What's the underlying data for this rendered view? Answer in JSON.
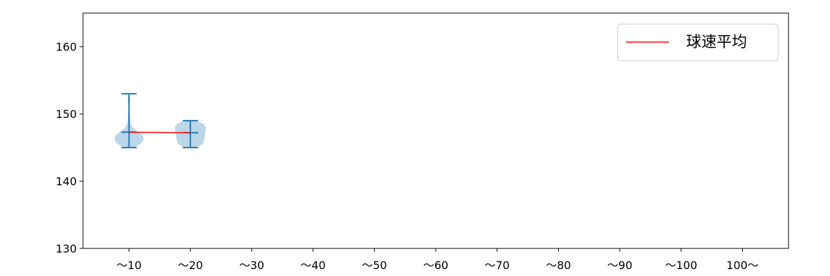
{
  "chart_data": {
    "type": "violin",
    "categories": [
      "～10",
      "～20",
      "～30",
      "～40",
      "～50",
      "～60",
      "～70",
      "～80",
      "～90",
      "～100",
      "100～"
    ],
    "ylim": [
      130,
      165
    ],
    "yticks": [
      130,
      140,
      150,
      160
    ],
    "grid": false,
    "legend": {
      "placement": "top-right",
      "entries": [
        {
          "label": "球速平均",
          "color": "#ff0000"
        }
      ]
    },
    "violin_color": "#1f77b4",
    "violins": [
      {
        "category": "～10",
        "min": 145,
        "max": 153,
        "mean": 147.3,
        "density": [
          [
            145,
            0.08
          ],
          [
            145.5,
            0.18
          ],
          [
            146,
            0.23
          ],
          [
            146.5,
            0.24
          ],
          [
            147,
            0.2
          ],
          [
            147.5,
            0.12
          ],
          [
            148,
            0.06
          ],
          [
            148.5,
            0.03
          ],
          [
            149,
            0.02
          ],
          [
            150,
            0.015
          ],
          [
            151,
            0.01
          ],
          [
            152,
            0.02
          ],
          [
            153,
            0.005
          ]
        ]
      },
      {
        "category": "～20",
        "min": 145,
        "max": 149,
        "mean": 147.2,
        "density": [
          [
            145,
            0.1
          ],
          [
            145.5,
            0.2
          ],
          [
            146,
            0.22
          ],
          [
            146.5,
            0.23
          ],
          [
            147,
            0.24
          ],
          [
            147.5,
            0.25
          ],
          [
            148,
            0.25
          ],
          [
            148.5,
            0.22
          ],
          [
            149,
            0.1
          ]
        ]
      }
    ],
    "mean_line": {
      "name": "球速平均",
      "color": "#ff0000",
      "values": [
        147.3,
        147.2
      ]
    }
  }
}
